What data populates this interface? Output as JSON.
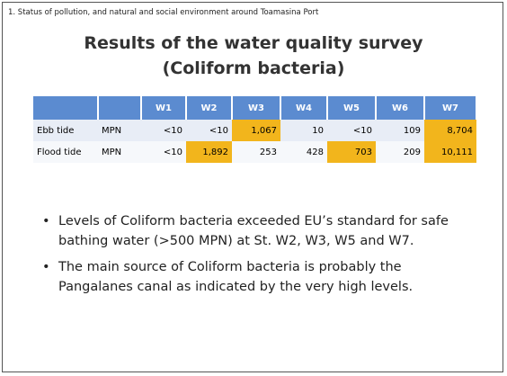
{
  "header": {
    "section": "1. Status of pollution, and natural and social environment around Toamasina Port"
  },
  "title": {
    "line1": "Results of the water quality survey",
    "line2": "(Coliform bacteria)"
  },
  "table": {
    "columns": [
      "W1",
      "W2",
      "W3",
      "W4",
      "W5",
      "W6",
      "W7"
    ],
    "header_color": "#5b8bd0",
    "highlight_color": "#f2b51c",
    "rows": [
      {
        "label": "Ebb tide",
        "unit": "MPN",
        "cells": [
          "<10",
          "<10",
          "1,067",
          "10",
          "<10",
          "109",
          "8,704"
        ],
        "exceeds": [
          false,
          false,
          true,
          false,
          false,
          false,
          true
        ]
      },
      {
        "label": "Flood tide",
        "unit": "MPN",
        "cells": [
          "<10",
          "1,892",
          "253",
          "428",
          "703",
          "209",
          "10,111"
        ],
        "exceeds": [
          false,
          true,
          false,
          false,
          true,
          false,
          true
        ]
      }
    ]
  },
  "bullets": [
    "Levels of Coliform bacteria exceeded EU’s standard for safe bathing water (>500 MPN) at St. W2, W3, W5 and W7.",
    "The main source of Coliform bacteria is probably the Pangalanes canal as indicated by the very high levels."
  ]
}
